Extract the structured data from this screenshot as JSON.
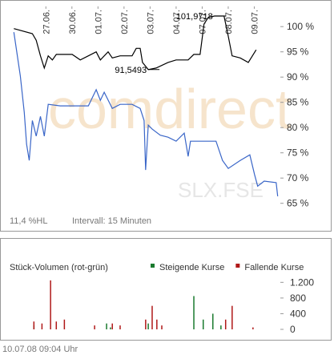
{
  "chart_data": [
    {
      "type": "line",
      "xlim": [
        -0.3,
        10
      ],
      "ylim": [
        64,
        104
      ],
      "xticks": [
        {
          "value": 1,
          "label": "27.06."
        },
        {
          "value": 2,
          "label": "30.06."
        },
        {
          "value": 3,
          "label": "01.07."
        },
        {
          "value": 4,
          "label": "02.07."
        },
        {
          "value": 5,
          "label": "03.07."
        },
        {
          "value": 6,
          "label": "04.07."
        },
        {
          "value": 7,
          "label": "07.07."
        },
        {
          "value": 8,
          "label": "08.07."
        },
        {
          "value": 9,
          "label": "09.07."
        }
      ],
      "yticks": [
        {
          "value": 100,
          "label": "100 %"
        },
        {
          "value": 95,
          "label": "95 %"
        },
        {
          "value": 90,
          "label": "90 %"
        },
        {
          "value": 85,
          "label": "85 %"
        },
        {
          "value": 80,
          "label": "80 %"
        },
        {
          "value": 75,
          "label": "75 %"
        },
        {
          "value": 70,
          "label": "70 %"
        },
        {
          "value": 65,
          "label": "65 %"
        }
      ],
      "watermark": "comdirect",
      "symbol": "SLX.FSE",
      "annotations": [
        {
          "text": "101,9718",
          "x": 7.47,
          "y": 102.1
        },
        {
          "text": "91,5493",
          "x": 4.93,
          "y": 91.5
        }
      ],
      "footer_left": "11,4 %HL",
      "footer_interval": "Intervall: 15 Minuten",
      "series": [
        {
          "color": "#000000",
          "x": [
            -0.23,
            0.48,
            0.63,
            0.79,
            0.94,
            1.09,
            1.25,
            1.4,
            2.01,
            2.32,
            2.63,
            2.93,
            3.09,
            3.39,
            3.55,
            3.85,
            4.31,
            4.47,
            4.62,
            4.71,
            4.93,
            5.23,
            5.69,
            6.0,
            6.46,
            6.68,
            6.92,
            7.07,
            7.23,
            7.47,
            7.84,
            8.0,
            8.15,
            8.46,
            8.77,
            9.07
          ],
          "values": [
            99.6,
            98.6,
            97.3,
            94.2,
            91.8,
            94.2,
            93.4,
            94.5,
            94.5,
            93.4,
            94.2,
            95.0,
            93.4,
            95.0,
            93.8,
            94.2,
            94.2,
            95.7,
            95.7,
            92.9,
            91.5,
            91.8,
            92.9,
            93.4,
            93.4,
            94.5,
            94.5,
            100.5,
            101.8,
            102.1,
            102.1,
            98.1,
            94.2,
            93.8,
            92.9,
            95.4
          ]
        },
        {
          "color": "#3a66c8",
          "x": [
            -0.23,
            0.02,
            0.17,
            0.26,
            0.36,
            0.48,
            0.63,
            0.79,
            0.94,
            1.09,
            1.55,
            2.63,
            2.93,
            3.09,
            3.24,
            3.55,
            3.85,
            4.31,
            4.62,
            4.77,
            4.83,
            4.93,
            5.08,
            5.39,
            5.69,
            6.0,
            6.31,
            6.46,
            6.55,
            7.53,
            7.78,
            8.0,
            8.46,
            8.83,
            9.01,
            9.13,
            9.38,
            9.84,
            9.9
          ],
          "values": [
            98.9,
            90.2,
            83.0,
            76.7,
            73.5,
            81.4,
            78.3,
            82.2,
            78.3,
            84.6,
            84.3,
            84.3,
            87.5,
            85.4,
            87.0,
            83.8,
            84.6,
            84.6,
            83.8,
            81.4,
            71.6,
            80.5,
            79.7,
            78.5,
            78.1,
            77.3,
            78.9,
            74.3,
            77.3,
            77.3,
            73.5,
            71.9,
            73.5,
            74.6,
            70.7,
            68.4,
            69.4,
            69.1,
            66.4
          ]
        }
      ]
    },
    {
      "type": "bar",
      "title": "Stück-Volumen (rot-grün)",
      "xlim": [
        -0.3,
        10
      ],
      "ylim": [
        0,
        1350
      ],
      "yticks": [
        {
          "value": 1200,
          "label": "1.200"
        },
        800,
        400,
        0
      ],
      "series": [
        {
          "name": "Steigende Kurse",
          "color": "#1a7a2e",
          "x": [
            0.54,
            3.33,
            3.48,
            4.93,
            6.68,
            7.04,
            7.41,
            7.72
          ],
          "values": [
            100,
            150,
            50,
            150,
            850,
            250,
            400,
            100
          ]
        },
        {
          "name": "Fallende Kurse",
          "color": "#b01818",
          "x": [
            0.54,
            0.85,
            1.18,
            1.4,
            1.71,
            2.87,
            3.55,
            3.85,
            4.83,
            5.08,
            5.26,
            5.45,
            7.9,
            8.15,
            8.95
          ],
          "values": [
            200,
            150,
            1250,
            200,
            250,
            100,
            150,
            100,
            250,
            600,
            250,
            100,
            250,
            600,
            50
          ]
        }
      ],
      "footer": "10.07.08   09:04 Uhr"
    }
  ]
}
